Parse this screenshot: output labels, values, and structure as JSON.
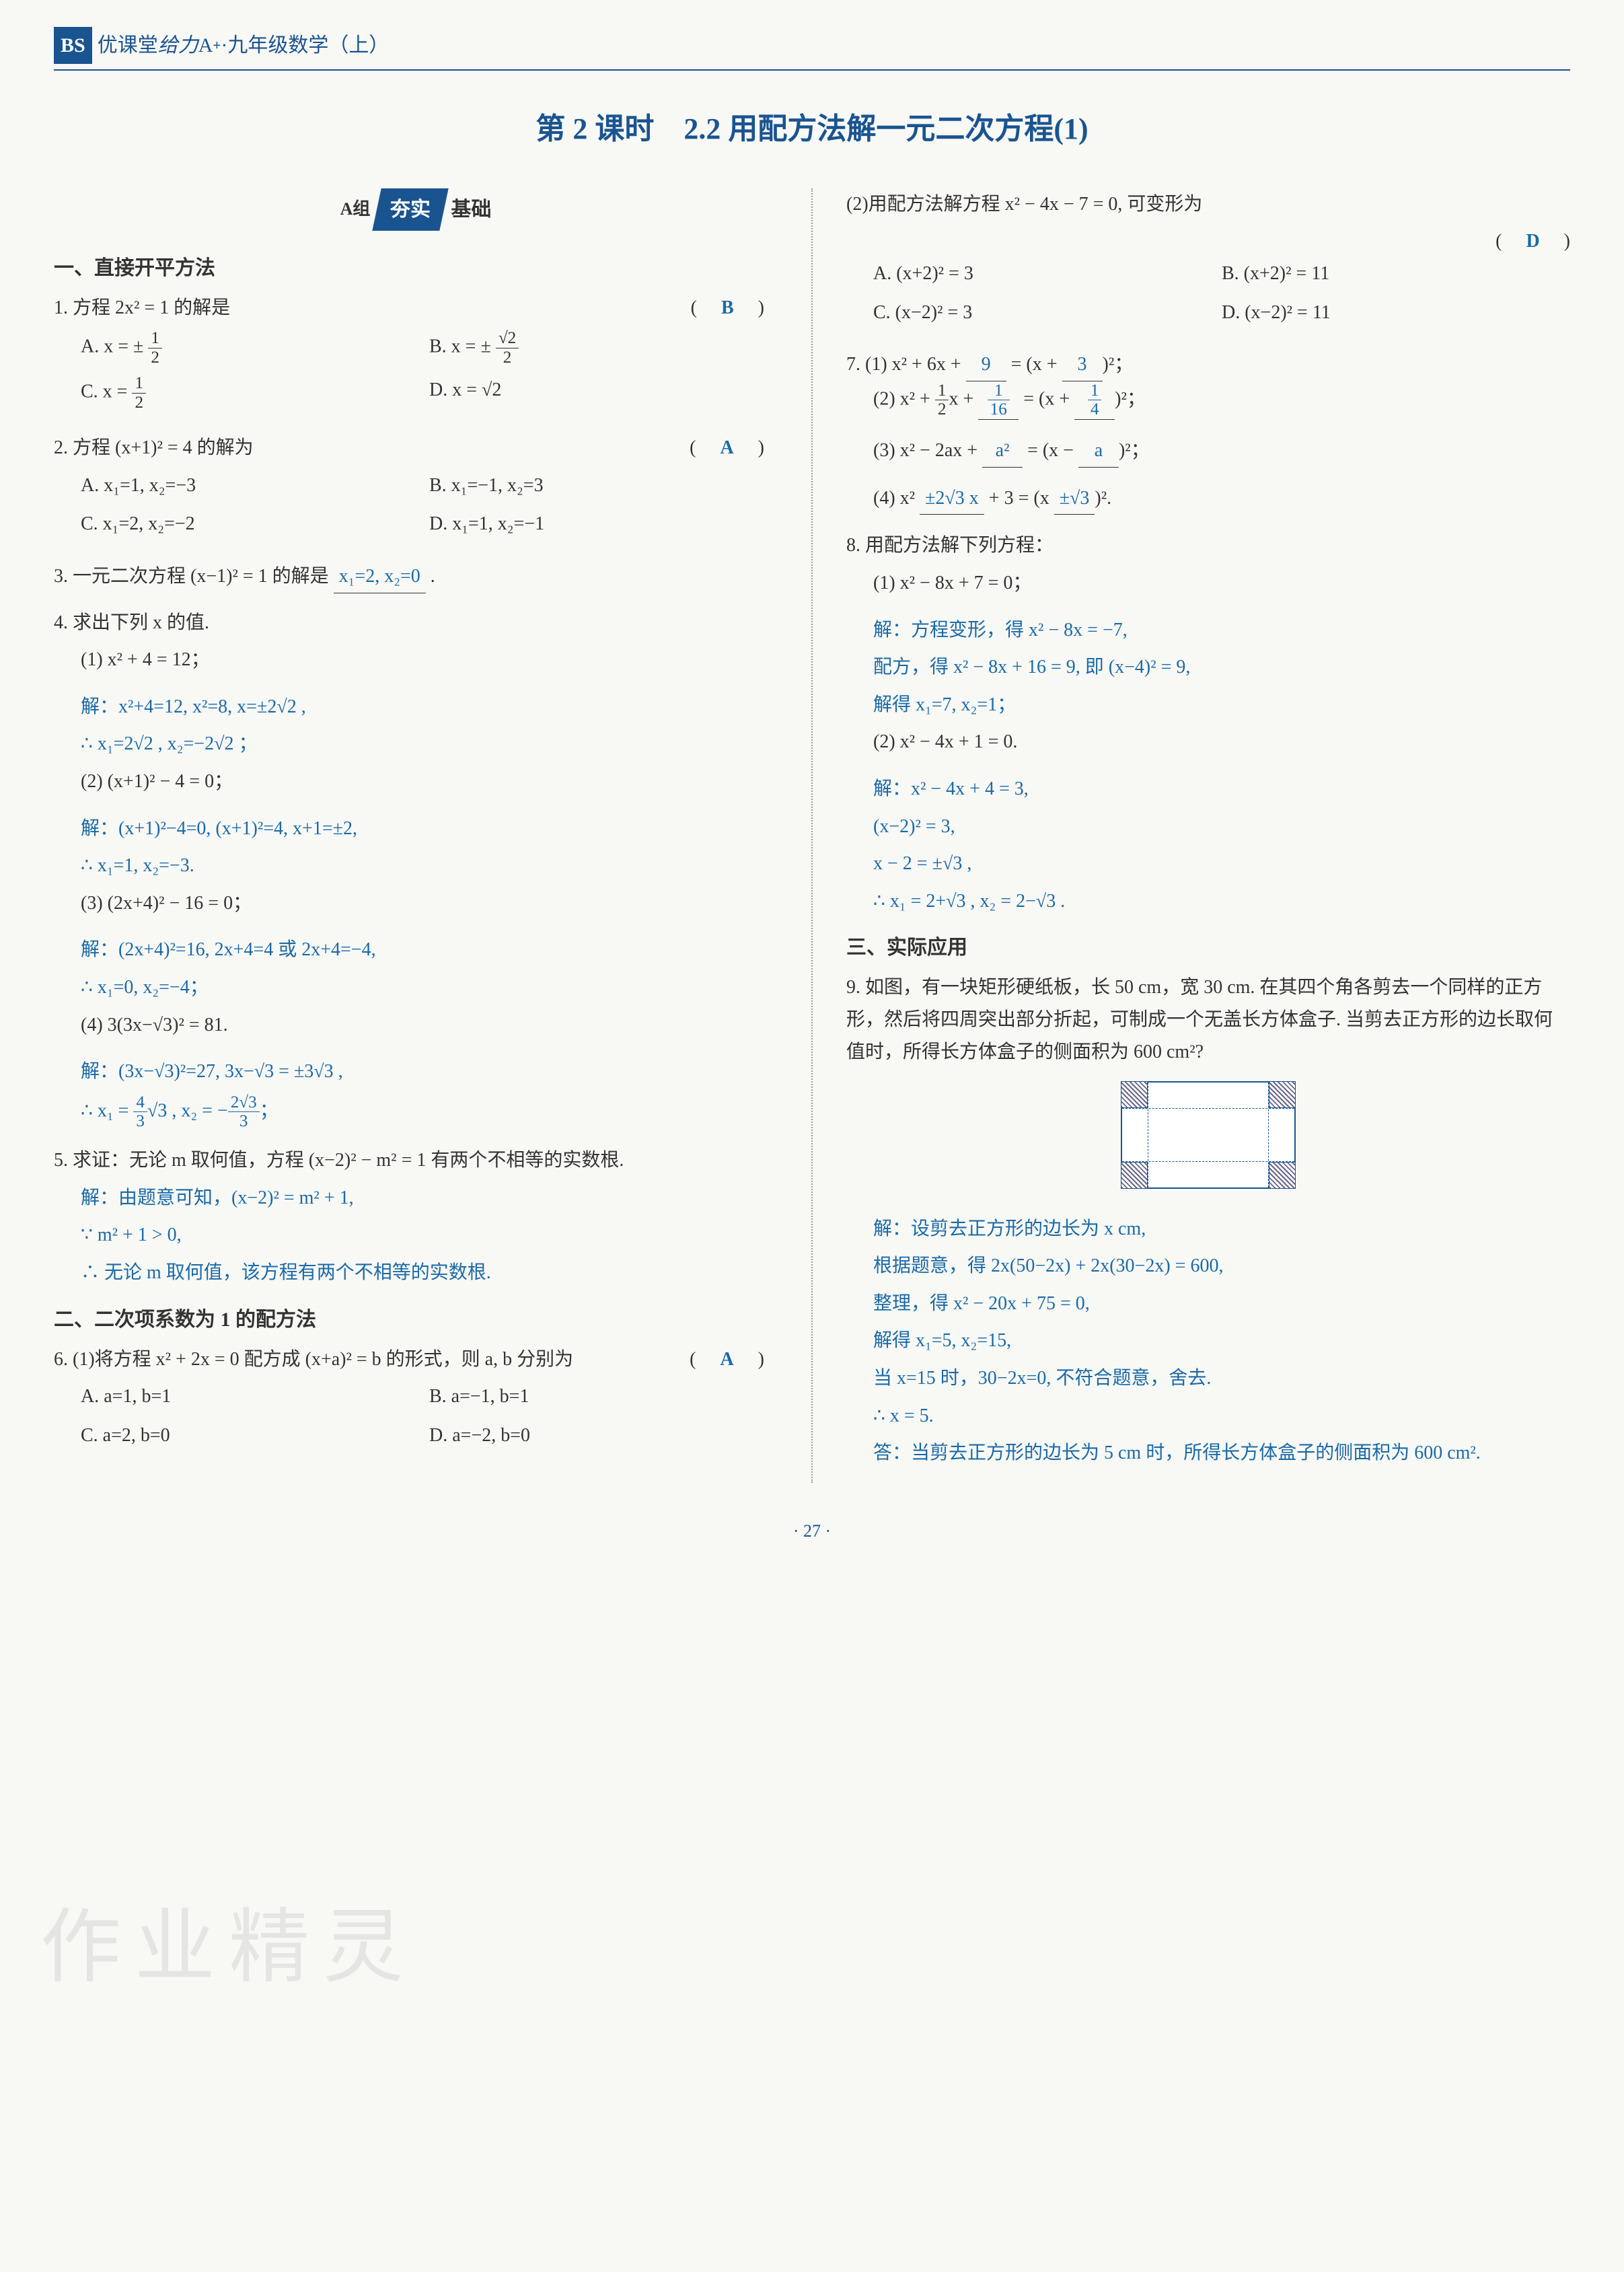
{
  "header": {
    "logo": "BS",
    "brand": "优课堂",
    "series": "给力",
    "level": "A",
    "plus": "+",
    "subject": "·九年级数学（上）"
  },
  "title": "第 2 课时　2.2 用配方法解一元二次方程(1)",
  "badge": {
    "group": "A组",
    "main": "夯实",
    "sub": "基础"
  },
  "left": {
    "topicA": "一、直接开平方法",
    "p1": {
      "text": "1. 方程 2x² = 1 的解是",
      "ans": "B",
      "A": "A. x = ± ",
      "B": "B. x = ± ",
      "C": "C. x = ",
      "D": "D. x = √2"
    },
    "p2": {
      "text": "2. 方程 (x+1)² = 4 的解为",
      "ans": "A",
      "A": "A. x₁=1, x₂=−3",
      "B": "B. x₁=−1, x₂=3",
      "C": "C. x₁=2, x₂=−2",
      "D": "D. x₁=1, x₂=−1"
    },
    "p3": {
      "text": "3. 一元二次方程 (x−1)² = 1 的解是",
      "blank": "x₁=2, x₂=0"
    },
    "p4": {
      "text": "4. 求出下列 x 的值.",
      "s1": "(1) x² + 4 = 12；",
      "s1sol1": "解：x²+4=12, x²=8, x=±2√2 ,",
      "s1sol2": "∴ x₁=2√2 , x₂=−2√2 ；",
      "s2": "(2) (x+1)² − 4 = 0；",
      "s2sol1": "解：(x+1)²−4=0, (x+1)²=4, x+1=±2,",
      "s2sol2": "∴ x₁=1, x₂=−3.",
      "s3": "(3) (2x+4)² − 16 = 0；",
      "s3sol1": "解：(2x+4)²=16, 2x+4=4 或 2x+4=−4,",
      "s3sol2": "∴ x₁=0, x₂=−4；",
      "s4": "(4) 3(3x−√3)² = 81.",
      "s4sol1": "解：(3x−√3)²=27, 3x−√3 = ±3√3 ,",
      "s4sol2a": "∴ x₁ = ",
      "s4sol2b": "√3 , x₂ = −",
      "s4sol2c": "；"
    },
    "p5": {
      "text": "5. 求证：无论 m 取何值，方程 (x−2)² − m² = 1 有两个不相等的实数根.",
      "sol1": "解：由题意可知，(x−2)² = m² + 1,",
      "sol2": "∵ m² + 1 > 0,",
      "sol3": "∴ 无论 m 取何值，该方程有两个不相等的实数根."
    },
    "topicB": "二、二次项系数为 1 的配方法",
    "p6": {
      "text": "6. (1)将方程 x² + 2x = 0 配方成 (x+a)² = b 的形式，则 a, b 分别为",
      "ans": "A",
      "A": "A. a=1, b=1",
      "B": "B. a=−1, b=1",
      "C": "C. a=2, b=0",
      "D": "D. a=−2, b=0"
    }
  },
  "right": {
    "p6b": {
      "text": "(2)用配方法解方程 x² − 4x − 7 = 0, 可变形为",
      "ans": "D",
      "A": "A. (x+2)² = 3",
      "B": "B. (x+2)² = 11",
      "C": "C. (x−2)² = 3",
      "D": "D. (x−2)² = 11"
    },
    "p7": {
      "l1a": "7. (1) x² + 6x + ",
      "l1b1": "9",
      "l1c": " = (x + ",
      "l1b2": "3",
      "l1d": ")²；",
      "l2a": "(2) x² + ",
      "l2c": "x + ",
      "l2b1": "",
      "l2d": " = (x + ",
      "l2b2": "",
      "l2e": ")²；",
      "l3a": "(3) x² − 2ax + ",
      "l3b1": "a²",
      "l3c": " = (x − ",
      "l3b2": "a",
      "l3d": ")²；",
      "l4a": "(4) x² ",
      "l4b1": "±2√3 x",
      "l4c": " + 3 = (x ",
      "l4b2": "±√3",
      "l4d": ")²."
    },
    "p8": {
      "text": "8. 用配方法解下列方程：",
      "s1": "(1) x² − 8x + 7 = 0；",
      "s1sol1": "解：方程变形，得 x² − 8x = −7,",
      "s1sol2": "配方，得 x² − 8x + 16 = 9, 即 (x−4)² = 9,",
      "s1sol3": "解得 x₁=7, x₂=1；",
      "s2": "(2) x² − 4x + 1 = 0.",
      "s2sol1": "解：x² − 4x + 4 = 3,",
      "s2sol2": "(x−2)² = 3,",
      "s2sol3": "x − 2 = ±√3 ,",
      "s2sol4": "∴ x₁ = 2+√3 , x₂ = 2−√3 ."
    },
    "topicC": "三、实际应用",
    "p9": {
      "text": "9. 如图，有一块矩形硬纸板，长 50 cm，宽 30 cm. 在其四个角各剪去一个同样的正方形，然后将四周突出部分折起，可制成一个无盖长方体盒子. 当剪去正方形的边长取何值时，所得长方体盒子的侧面积为 600 cm²?",
      "sol1": "解：设剪去正方形的边长为 x cm,",
      "sol2": "根据题意，得 2x(50−2x) + 2x(30−2x) = 600,",
      "sol3": "整理，得 x² − 20x + 75 = 0,",
      "sol4": "解得 x₁=5, x₂=15,",
      "sol5": "当 x=15 时，30−2x=0, 不符合题意，舍去.",
      "sol6": "∴ x = 5.",
      "sol7": "答：当剪去正方形的边长为 5 cm 时，所得长方体盒子的侧面积为 600 cm²."
    }
  },
  "pagenum": "· 27 ·",
  "watermark": "作业精灵"
}
